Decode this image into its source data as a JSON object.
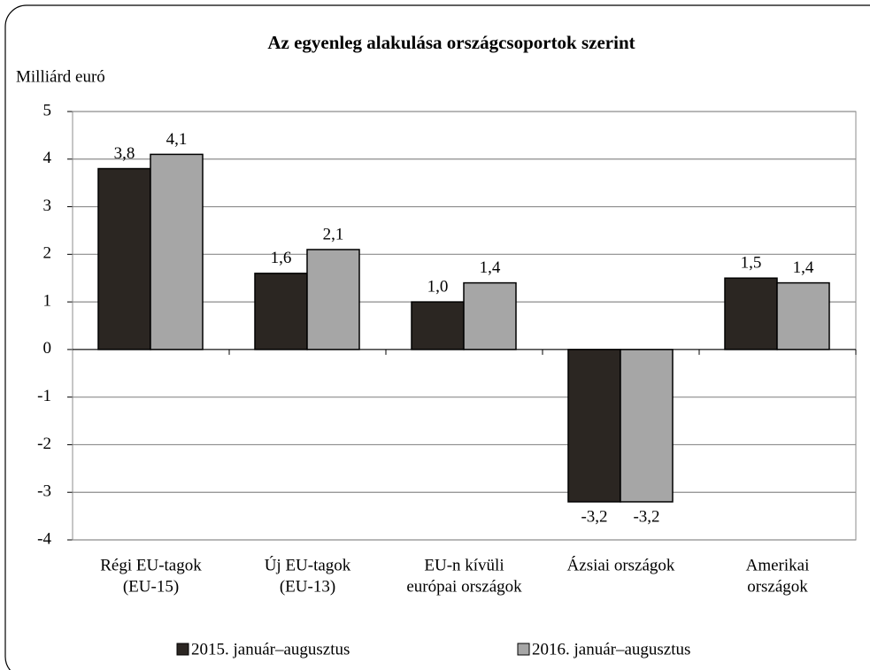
{
  "chart_data": {
    "type": "bar",
    "title": "Az egyenleg alakulása országcsoportok szerint",
    "y_label": "Milliárd euró",
    "categories": [
      [
        "Régi EU-tagok",
        "(EU-15)"
      ],
      [
        "Új EU-tagok",
        "(EU-13)"
      ],
      [
        "EU-n kívüli",
        "európai országok"
      ],
      [
        "Ázsiai országok"
      ],
      [
        "Amerikai",
        "országok"
      ]
    ],
    "series": [
      {
        "name": "2015. január–augusztus",
        "color": "#2b2622",
        "values": [
          3.8,
          1.6,
          1.0,
          -3.2,
          1.5
        ],
        "value_labels": [
          "3,8",
          "1,6",
          "1,0",
          "-3,2",
          "1,5"
        ]
      },
      {
        "name": "2016. január–augusztus",
        "color": "#a6a6a6",
        "values": [
          4.1,
          2.1,
          1.4,
          -3.2,
          1.4
        ],
        "value_labels": [
          "4,1",
          "2,1",
          "1,4",
          "-3,2",
          "1,4"
        ]
      }
    ],
    "ylim": [
      -4,
      5
    ],
    "yticks": [
      -4,
      -3,
      -2,
      -1,
      0,
      1,
      2,
      3,
      4,
      5
    ],
    "grid": true
  }
}
